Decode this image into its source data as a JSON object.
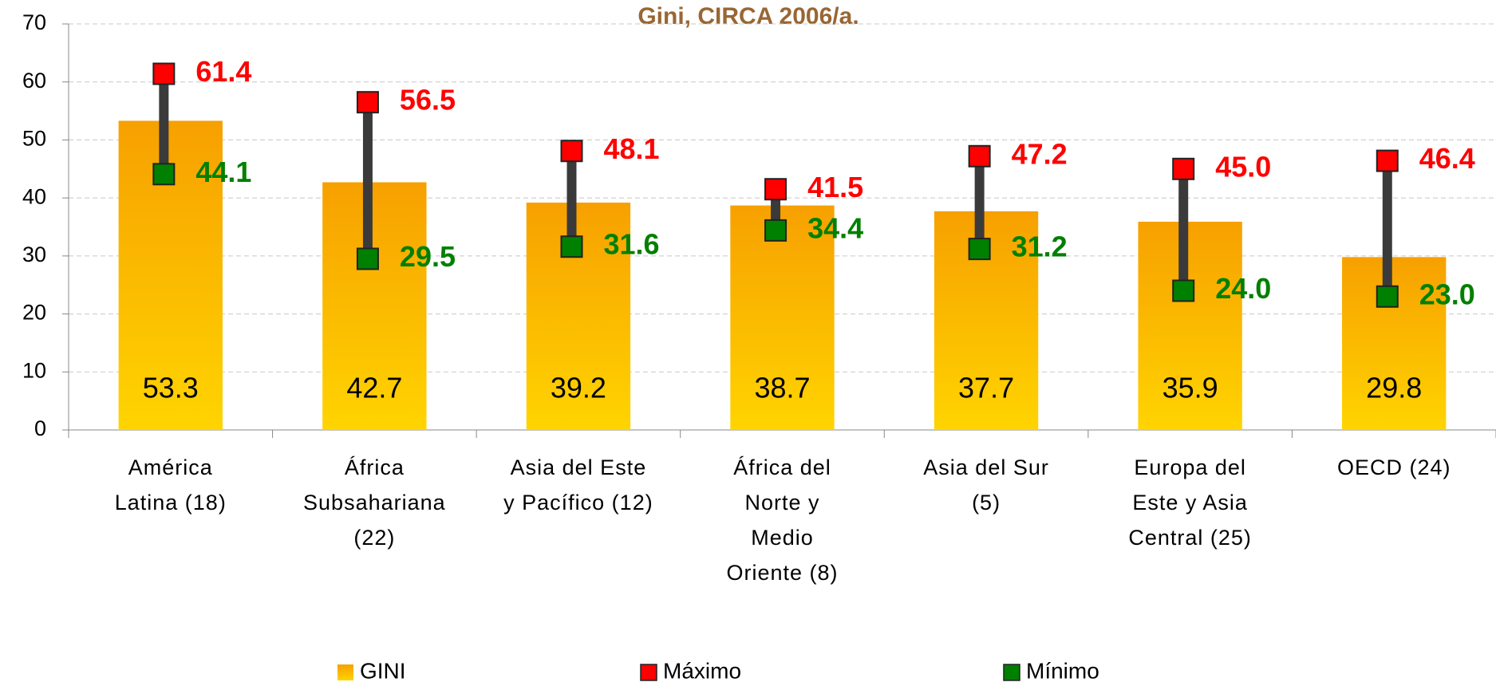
{
  "chart_data": {
    "type": "bar",
    "title": "Gini, CIRCA 2006/a.",
    "categories": [
      [
        "América",
        "Latina (18)"
      ],
      [
        "África",
        "Subsahariana",
        "(22)"
      ],
      [
        "Asia del Este",
        "y Pacífico (12)"
      ],
      [
        "África del",
        "Norte y",
        "Medio",
        "Oriente (8)"
      ],
      [
        "Asia del Sur",
        "(5)"
      ],
      [
        "Europa del",
        "Este y Asia",
        "Central (25)"
      ],
      [
        "OECD (24)"
      ]
    ],
    "series": [
      {
        "name": "GINI",
        "color": "#f9a800",
        "values": [
          53.3,
          42.7,
          39.2,
          38.7,
          37.7,
          35.9,
          29.8
        ],
        "value_labels": [
          "53.3",
          "42.7",
          "39.2",
          "38.7",
          "37.7",
          "35.9",
          "29.8"
        ]
      },
      {
        "name": "Máximo",
        "color": "#ff0000",
        "values": [
          61.4,
          56.5,
          48.1,
          41.5,
          47.2,
          45,
          46.4
        ],
        "value_labels": [
          "61.4",
          "56.5",
          "48.1",
          "41.5",
          "47.2",
          "45.0",
          "46.4"
        ]
      },
      {
        "name": "Mínimo",
        "color": "#008000",
        "values": [
          44.1,
          29.5,
          31.6,
          34.4,
          31.2,
          24,
          23
        ],
        "value_labels": [
          "44.1",
          "29.5",
          "31.6",
          "34.4",
          "31.2",
          "24.0",
          "23.0"
        ]
      }
    ],
    "ylim": [
      0,
      70
    ],
    "yticks": [
      0,
      10,
      20,
      30,
      40,
      50,
      60,
      70
    ],
    "grid": true,
    "legend": "bottom"
  }
}
